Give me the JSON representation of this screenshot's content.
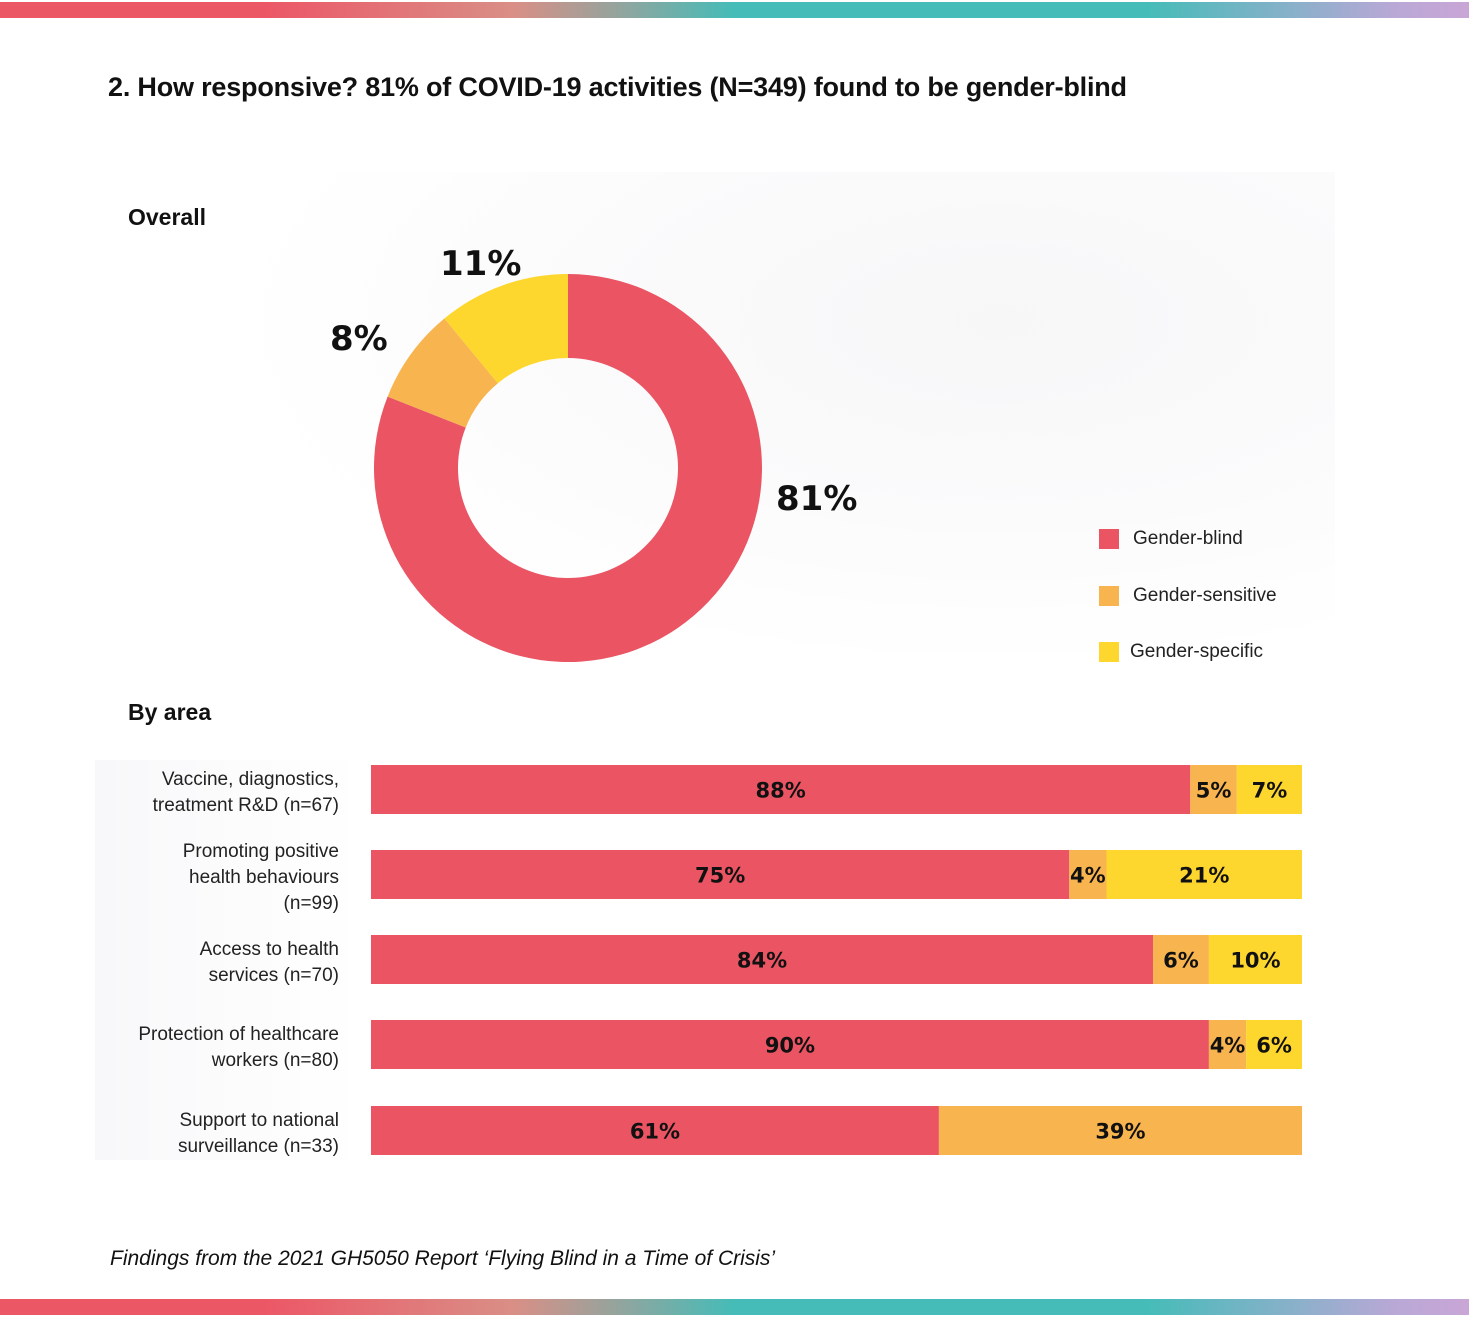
{
  "title": "2. How responsive? 81% of COVID-19 activities (N=349) found to be gender-blind",
  "footer": "Findings from the 2021 GH5050 Report ‘Flying Blind in a Time of Crisis’",
  "colors": {
    "gender_blind": "#ea5463",
    "gender_sensitive": "#f8b44e",
    "gender_specific": "#fed72e"
  },
  "chart_data": [
    {
      "type": "pie",
      "title": "Overall",
      "donut": true,
      "categories": [
        "Gender-blind",
        "Gender-sensitive",
        "Gender-specific"
      ],
      "values": [
        81,
        8,
        11
      ],
      "labels": [
        "81%",
        "8%",
        "11%"
      ],
      "legend": {
        "position": "right",
        "entries": [
          "Gender-blind",
          "Gender-sensitive",
          "Gender-specific"
        ]
      }
    },
    {
      "type": "bar",
      "orientation": "horizontal",
      "stacked": true,
      "title": "By area",
      "categories": [
        "Vaccine, diagnostics, treatment R&D (n=67)",
        "Promoting positive health behaviours (n=99)",
        "Access to health services (n=70)",
        "Protection of healthcare workers (n=80)",
        "Support to national surveillance (n=33)"
      ],
      "category_lines": [
        [
          "Vaccine, diagnostics,",
          "treatment R&D (n=67)"
        ],
        [
          "Promoting positive",
          "health behaviours",
          "(n=99)"
        ],
        [
          "Access to health",
          "services (n=70)"
        ],
        [
          "Protection of healthcare",
          "workers (n=80)"
        ],
        [
          "Support to national",
          "surveillance (n=33)"
        ]
      ],
      "series": [
        {
          "name": "Gender-blind",
          "values": [
            88,
            75,
            84,
            90,
            61
          ],
          "labels": [
            "88%",
            "75%",
            "84%",
            "90%",
            "61%"
          ]
        },
        {
          "name": "Gender-sensitive",
          "values": [
            5,
            4,
            6,
            4,
            39
          ],
          "labels": [
            "5%",
            "4%",
            "6%",
            "4%",
            "39%"
          ]
        },
        {
          "name": "Gender-specific",
          "values": [
            7,
            21,
            10,
            6,
            0
          ],
          "labels": [
            "7%",
            "21%",
            "10%",
            "6%",
            ""
          ]
        }
      ],
      "xlim": [
        0,
        100
      ]
    }
  ]
}
